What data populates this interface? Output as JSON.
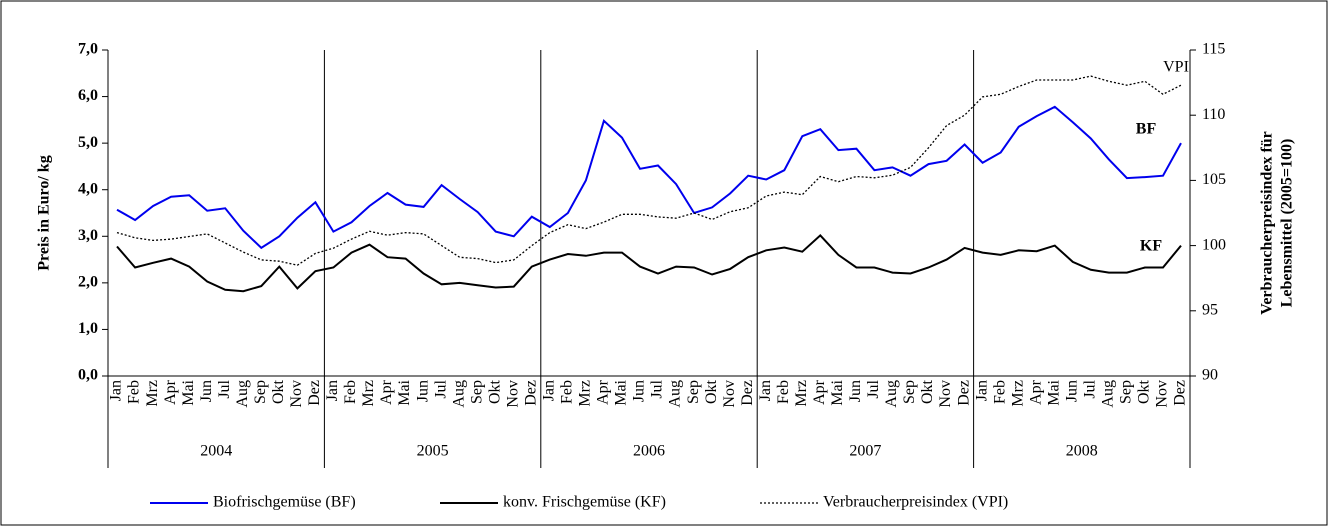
{
  "chart_data": {
    "type": "line",
    "categories": [
      "Jan",
      "Feb",
      "Mrz",
      "Apr",
      "Mai",
      "Jun",
      "Jul",
      "Aug",
      "Sep",
      "Okt",
      "Nov",
      "Dez",
      "Jan",
      "Feb",
      "Mrz",
      "Apr",
      "Mai",
      "Jun",
      "Jul",
      "Aug",
      "Sep",
      "Okt",
      "Nov",
      "Dez",
      "Jan",
      "Feb",
      "Mrz",
      "Apr",
      "Mai",
      "Jun",
      "Jul",
      "Aug",
      "Sep",
      "Okt",
      "Nov",
      "Dez",
      "Jan",
      "Feb",
      "Mrz",
      "Apr",
      "Mai",
      "Jun",
      "Jul",
      "Aug",
      "Sep",
      "Okt",
      "Nov",
      "Dez",
      "Jan",
      "Feb",
      "Mrz",
      "Apr",
      "Mai",
      "Jun",
      "Jul",
      "Aug",
      "Sep",
      "Okt",
      "Nov",
      "Dez"
    ],
    "years": [
      "2004",
      "2005",
      "2006",
      "2007",
      "2008"
    ],
    "y_label": "Preis in Euro/ kg",
    "y2_label": [
      "Verbraucherpreisindex für",
      "Lebensmittel (2005=100)"
    ],
    "ylim": [
      0,
      7
    ],
    "yticks": [
      {
        "value": 0,
        "label": "0,0"
      },
      {
        "value": 1,
        "label": "1,0"
      },
      {
        "value": 2,
        "label": "2,0"
      },
      {
        "value": 3,
        "label": "3,0"
      },
      {
        "value": 4,
        "label": "4,0"
      },
      {
        "value": 5,
        "label": "5,0"
      },
      {
        "value": 6,
        "label": "6,0"
      },
      {
        "value": 7,
        "label": "7,0"
      }
    ],
    "y2lim": [
      90,
      115
    ],
    "y2ticks": [
      90,
      95,
      100,
      105,
      110,
      115
    ],
    "legend": "bottom",
    "series": [
      {
        "name": "Biofrischgemüse (BF)",
        "color": "#0000ee",
        "style": "solid",
        "values": [
          3.57,
          3.35,
          3.65,
          3.85,
          3.88,
          3.55,
          3.6,
          3.12,
          2.75,
          3.0,
          3.4,
          3.73,
          3.1,
          3.3,
          3.65,
          3.93,
          3.68,
          3.63,
          4.1,
          3.8,
          3.52,
          3.1,
          3.0,
          3.42,
          3.2,
          3.5,
          4.2,
          5.48,
          5.12,
          4.45,
          4.52,
          4.12,
          3.5,
          3.62,
          3.92,
          4.3,
          4.22,
          4.42,
          5.15,
          5.3,
          4.85,
          4.88,
          4.42,
          4.48,
          4.3,
          4.55,
          4.62,
          4.97,
          4.58,
          4.8,
          5.35,
          5.58,
          5.78,
          5.45,
          5.1,
          4.65,
          4.25,
          4.27,
          4.3,
          5.0
        ]
      },
      {
        "name": "konv. Frischgemüse (KF)",
        "color": "#000000",
        "style": "solid",
        "values": [
          2.78,
          2.33,
          2.43,
          2.52,
          2.35,
          2.03,
          1.85,
          1.82,
          1.93,
          2.35,
          1.88,
          2.25,
          2.33,
          2.65,
          2.82,
          2.55,
          2.52,
          2.2,
          1.97,
          2.0,
          1.95,
          1.9,
          1.92,
          2.35,
          2.5,
          2.62,
          2.58,
          2.65,
          2.65,
          2.35,
          2.2,
          2.35,
          2.33,
          2.18,
          2.3,
          2.55,
          2.7,
          2.76,
          2.67,
          3.02,
          2.6,
          2.33,
          2.33,
          2.22,
          2.2,
          2.33,
          2.5,
          2.75,
          2.65,
          2.6,
          2.7,
          2.68,
          2.8,
          2.45,
          2.28,
          2.22,
          2.22,
          2.33,
          2.33,
          2.8
        ]
      },
      {
        "name": "Verbraucherpreisindex (VPI)",
        "color": "#000000",
        "style": "dotted",
        "axis": "y2",
        "values": [
          101.0,
          100.6,
          100.4,
          100.5,
          100.7,
          100.9,
          100.2,
          99.5,
          98.9,
          98.8,
          98.5,
          99.4,
          99.8,
          100.5,
          101.1,
          100.8,
          101.0,
          100.9,
          100.0,
          99.1,
          99.0,
          98.7,
          98.9,
          100.0,
          101.0,
          101.6,
          101.3,
          101.8,
          102.4,
          102.4,
          102.2,
          102.1,
          102.5,
          102.0,
          102.6,
          102.9,
          103.8,
          104.1,
          103.9,
          105.3,
          104.9,
          105.3,
          105.2,
          105.4,
          106.0,
          107.5,
          109.2,
          110.0,
          111.4,
          111.6,
          112.2,
          112.7,
          112.7,
          112.7,
          113.0,
          112.6,
          112.3,
          112.6,
          111.6,
          112.3
        ]
      }
    ],
    "annotations": [
      {
        "text": "VPI",
        "color": "#000000",
        "bold": false
      },
      {
        "text": "BF",
        "color": "#0000ee",
        "bold": true
      },
      {
        "text": "KF",
        "color": "#000000",
        "bold": true
      }
    ]
  }
}
